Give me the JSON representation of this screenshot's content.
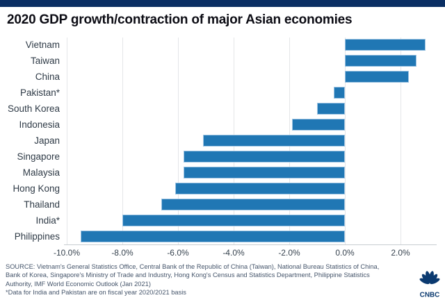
{
  "page": {
    "topbar_color": "#0a2e63",
    "background_color": "#ffffff"
  },
  "title": "2020 GDP growth/contraction of major Asian economies",
  "chart_data": {
    "type": "bar",
    "orientation": "horizontal",
    "title": "2020 GDP growth/contraction of major Asian economies",
    "categories": [
      "Vietnam",
      "Taiwan",
      "China",
      "Pakistan*",
      "South Korea",
      "Indonesia",
      "Japan",
      "Singapore",
      "Malaysia",
      "Hong Kong",
      "Thailand",
      "India*",
      "Philippines"
    ],
    "values": [
      2.9,
      2.58,
      2.3,
      -0.4,
      -1.0,
      -1.9,
      -5.1,
      -5.8,
      -5.8,
      -6.1,
      -6.6,
      -8.0,
      -9.5
    ],
    "unit": "%",
    "xlabel": "",
    "ylabel": "",
    "xlim": [
      -10.1,
      3.3
    ],
    "x_ticks": [
      -10,
      -8,
      -6,
      -4,
      -2,
      0,
      2
    ],
    "x_tick_labels": [
      "-10.0%",
      "-8.0%",
      "-6.0%",
      "-4.0%",
      "-2.0%",
      "0.0%",
      "2.0%"
    ],
    "grid": true,
    "legend": "none",
    "bar_color": "#2077b4",
    "bar_edge_color": "#9cc3e2"
  },
  "footer": {
    "source_lines": [
      "SOURCE: Vietnam's General Statistics Office, Central Bank of the Republic of China (Taiwan), National Bureau Statistics of China,",
      "Bank of Korea, Singapore's Ministry of Trade and Industry, Hong Kong's Census and Statistics Department, Philippine Statistics",
      "Authority, IMF World Economic Outlook (Jan 2021)"
    ],
    "note": "*Data for India and Pakistan are on fiscal year 2020/2021 basis"
  },
  "logo": {
    "text": "CNBC",
    "icon": "cnbc-peacock-icon",
    "color": "#0b3a70"
  }
}
